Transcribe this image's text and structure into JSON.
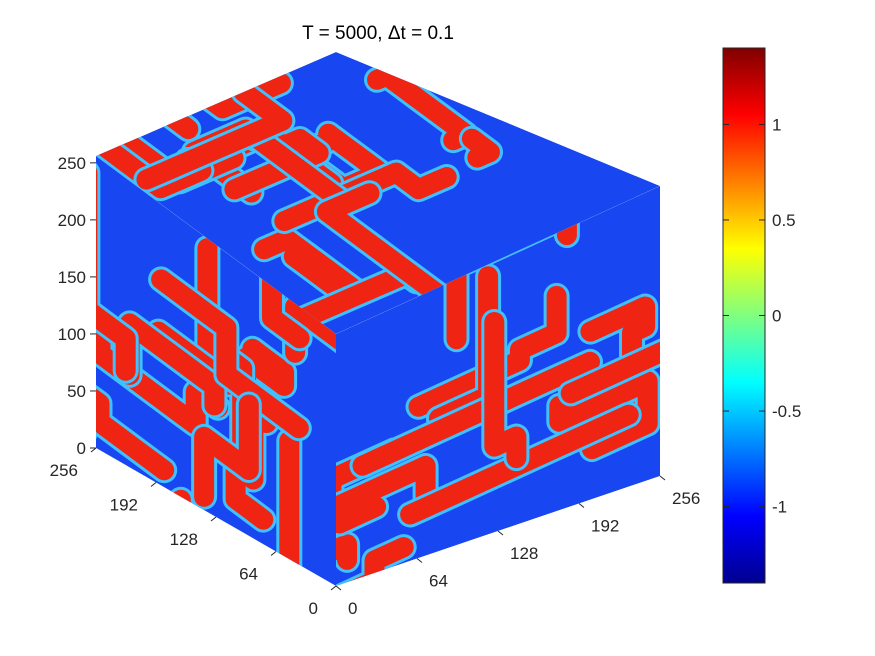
{
  "chart_data": {
    "type": "heatmap",
    "title": "T = 5000,  Δt = 0.1",
    "xlabel": "",
    "ylabel": "",
    "zlabel": "",
    "x_ticks": [
      "0",
      "64",
      "128",
      "192",
      "256"
    ],
    "y_ticks": [
      "0",
      "64",
      "128",
      "192",
      "256"
    ],
    "z_ticks": [
      "0",
      "50",
      "100",
      "150",
      "200",
      "250"
    ],
    "xlim": [
      0,
      256
    ],
    "ylim": [
      0,
      256
    ],
    "zlim": [
      0,
      256
    ],
    "colormap": "jet",
    "color_range": [
      -1.4,
      1.4
    ],
    "colorbar_ticks": [
      "1",
      "0.5",
      "0",
      "-0.5",
      "-1"
    ],
    "colorbar_tick_values": [
      1,
      0.5,
      0,
      -0.5,
      -1
    ],
    "phase_values": [
      -1,
      1
    ],
    "phase_colors": {
      "negative": "#1846f0",
      "positive": "#f02412",
      "interface": "#3fc0ff"
    },
    "description_faces": [
      "top",
      "left",
      "right"
    ]
  }
}
